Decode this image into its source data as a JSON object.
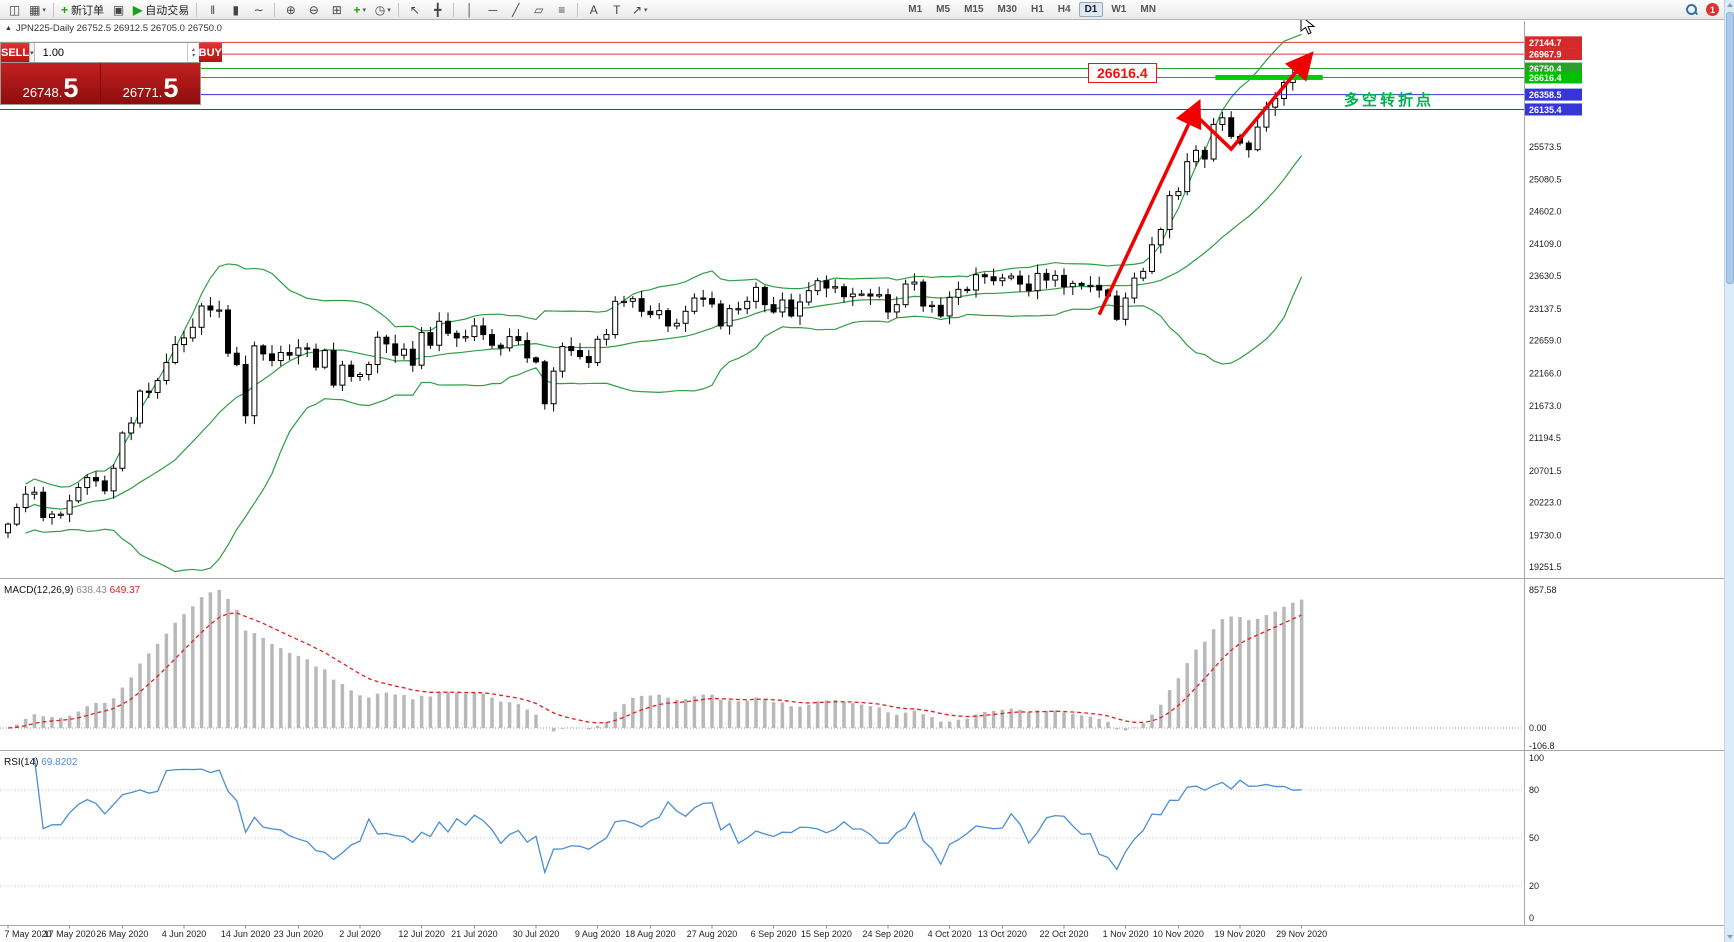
{
  "toolbar": {
    "dropdown_glyph": "▾",
    "items": [
      {
        "name": "new-chart-icon",
        "type": "icon",
        "glyph": "◫"
      },
      {
        "name": "chart-profiles-icon",
        "type": "icon",
        "glyph": "▦",
        "dropdown": true
      },
      {
        "type": "sep"
      },
      {
        "name": "new-order-button",
        "type": "button",
        "glyph": "+",
        "glyph_color": "#18a018",
        "label": "新订单"
      },
      {
        "name": "chart-windows-icon",
        "type": "icon",
        "glyph": "▣"
      },
      {
        "name": "auto-trading-button",
        "type": "button",
        "glyph": "▶",
        "glyph_color": "#18a018",
        "label": "自动交易"
      },
      {
        "type": "sep"
      },
      {
        "name": "bar-chart-icon",
        "type": "icon",
        "glyph": "‖"
      },
      {
        "name": "candlestick-chart-icon",
        "type": "icon",
        "glyph": "▮"
      },
      {
        "name": "line-chart-icon",
        "type": "icon",
        "glyph": "∼"
      },
      {
        "type": "sep"
      },
      {
        "name": "zoom-in-icon",
        "type": "icon",
        "glyph": "⊕"
      },
      {
        "name": "zoom-out-icon",
        "type": "icon",
        "glyph": "⊖"
      },
      {
        "name": "tile-windows-icon",
        "type": "icon",
        "glyph": "⊞"
      },
      {
        "name": "indicators-icon",
        "type": "icon",
        "glyph": "+",
        "glyph_color": "#18a018",
        "dropdown": true
      },
      {
        "name": "periods-icon",
        "type": "icon",
        "glyph": "◷",
        "dropdown": true
      },
      {
        "type": "sep"
      },
      {
        "name": "cursor-icon",
        "type": "icon",
        "glyph": "↖"
      },
      {
        "name": "crosshair-icon",
        "type": "icon",
        "glyph": "╋"
      },
      {
        "type": "sep"
      },
      {
        "name": "vertical-line-icon",
        "type": "icon",
        "glyph": "│"
      },
      {
        "name": "horizontal-line-icon",
        "type": "icon",
        "glyph": "─"
      },
      {
        "name": "trendline-icon",
        "type": "icon",
        "glyph": "╱"
      },
      {
        "name": "channel-icon",
        "type": "icon",
        "glyph": "▱"
      },
      {
        "name": "fibonacci-icon",
        "type": "icon",
        "glyph": "≡"
      },
      {
        "type": "sep"
      },
      {
        "name": "text-tool-icon",
        "type": "icon",
        "glyph": "A"
      },
      {
        "name": "label-tool-icon",
        "type": "icon",
        "glyph": "T"
      },
      {
        "name": "arrows-tool-icon",
        "type": "icon",
        "glyph": "↗",
        "dropdown": true
      }
    ],
    "timeframes": [
      "M1",
      "M5",
      "M15",
      "M30",
      "H1",
      "H4",
      "D1",
      "W1",
      "MN"
    ],
    "active_timeframe": "D1",
    "right": {
      "notification_count": "1"
    }
  },
  "chart_header": {
    "collapse_glyph": "▲",
    "info_line": "JPN225-Daily  26752.5 26912.5 26705.0 26750.0"
  },
  "trade_panel": {
    "sell_label": "SELL",
    "buy_label": "BUY",
    "volume": "1.00",
    "dropdown_glyph": "▾",
    "spinner_up": "▴",
    "spinner_down": "▾",
    "sell_price_prefix": "26748.",
    "sell_price_big": "5",
    "buy_price_prefix": "26771.",
    "buy_price_big": "5"
  },
  "annotations": {
    "price_box": "26616.4",
    "turning_point": "多空转折点"
  },
  "price_axis": {
    "labels": [
      "25573.5",
      "25080.5",
      "24602.0",
      "24109.0",
      "23630.5",
      "23137.5",
      "22659.0",
      "22166.0",
      "21673.0",
      "21194.5",
      "20701.5",
      "20223.0",
      "19730.0",
      "19251.5"
    ],
    "tags": [
      {
        "value": "27144.7",
        "color": "#d42a2a"
      },
      {
        "value": "26967.9",
        "color": "#d42a2a"
      },
      {
        "value": "26750.4",
        "color": "#2ca02c"
      },
      {
        "value": "26616.4",
        "color": "#00c000"
      },
      {
        "value": "26358.5",
        "color": "#3535d8"
      },
      {
        "value": "26135.4",
        "color": "#3535d8"
      }
    ]
  },
  "indicators": {
    "macd": {
      "name": "MACD(12,26,9)",
      "main_value": "638.43",
      "signal_value": "649.37",
      "axis_labels": [
        "857.58",
        "0.00",
        "-106.8"
      ]
    },
    "rsi": {
      "name": "RSI(14)",
      "value": "69.8202",
      "axis_labels": [
        "100",
        "80",
        "50",
        "20",
        "0"
      ],
      "levels": [
        80,
        50,
        20
      ]
    }
  },
  "date_axis": {
    "ticks": [
      {
        "i": 0,
        "label": "7 May 2020"
      },
      {
        "i": 7,
        "label": "17 May 2020"
      },
      {
        "i": 13,
        "label": "26 May 2020"
      },
      {
        "i": 20,
        "label": "4 Jun 2020"
      },
      {
        "i": 27,
        "label": "14 Jun 2020"
      },
      {
        "i": 33,
        "label": "23 Jun 2020"
      },
      {
        "i": 40,
        "label": "2 Jul 2020"
      },
      {
        "i": 47,
        "label": "12 Jul 2020"
      },
      {
        "i": 53,
        "label": "21 Jul 2020"
      },
      {
        "i": 60,
        "label": "30 Jul 2020"
      },
      {
        "i": 67,
        "label": "9 Aug 2020"
      },
      {
        "i": 73,
        "label": "18 Aug 2020"
      },
      {
        "i": 80,
        "label": "27 Aug 2020"
      },
      {
        "i": 87,
        "label": "6 Sep 2020"
      },
      {
        "i": 93,
        "label": "15 Sep 2020"
      },
      {
        "i": 100,
        "label": "24 Sep 2020"
      },
      {
        "i": 107,
        "label": "4 Oct 2020"
      },
      {
        "i": 113,
        "label": "13 Oct 2020"
      },
      {
        "i": 120,
        "label": "22 Oct 2020"
      },
      {
        "i": 127,
        "label": "1 Nov 2020"
      },
      {
        "i": 133,
        "label": "10 Nov 2020"
      },
      {
        "i": 140,
        "label": "19 Nov 2020"
      },
      {
        "i": 147,
        "label": "29 Nov 2020"
      }
    ]
  },
  "chart_data": {
    "type": "candlestick",
    "symbol": "JPN225",
    "timeframe": "Daily",
    "ohlc_current": {
      "open": 26752.5,
      "high": 26912.5,
      "low": 26705.0,
      "close": 26750.0
    },
    "y_axis_range": [
      19150,
      27300
    ],
    "bollinger_period": 20,
    "closes": [
      19900,
      20150,
      20350,
      20380,
      20000,
      20050,
      20050,
      20250,
      20450,
      20600,
      20550,
      20400,
      20740,
      21270,
      21420,
      21900,
      21880,
      22060,
      22330,
      22600,
      22700,
      22860,
      23180,
      23120,
      23120,
      22470,
      22300,
      21530,
      22580,
      22460,
      22360,
      22480,
      22440,
      22550,
      22530,
      22260,
      22510,
      21990,
      22290,
      22120,
      22150,
      22300,
      22710,
      22610,
      22440,
      22530,
      22290,
      22780,
      22590,
      22950,
      22770,
      22700,
      22720,
      22880,
      22750,
      22590,
      22550,
      22720,
      22660,
      22400,
      22340,
      21710,
      22200,
      22570,
      22510,
      22420,
      22330,
      22680,
      22750,
      23250,
      23250,
      23290,
      23100,
      23050,
      23110,
      22880,
      22920,
      23100,
      23300,
      23290,
      23210,
      22880,
      23140,
      23140,
      23250,
      23460,
      23200,
      23090,
      23270,
      23030,
      23240,
      23410,
      23560,
      23450,
      23470,
      23320,
      23360,
      23360,
      23330,
      23350,
      23090,
      23200,
      23510,
      23540,
      23180,
      23190,
      23030,
      23310,
      23430,
      23420,
      23650,
      23620,
      23560,
      23600,
      23630,
      23510,
      23410,
      23670,
      23570,
      23640,
      23470,
      23520,
      23490,
      23490,
      23420,
      23330,
      22980,
      23300,
      23600,
      23700,
      24100,
      24330,
      24840,
      24900,
      25350,
      25520,
      25390,
      25910,
      26010,
      25730,
      25630,
      25530,
      25870,
      26170,
      26300,
      26540,
      26650,
      26750
    ],
    "horizontal_lines": [
      {
        "price": 27144.7,
        "color": "#e03636"
      },
      {
        "price": 26967.9,
        "color": "#e03636"
      },
      {
        "price": 26750.4,
        "color": "#2ca02c"
      },
      {
        "price": 26616.4,
        "color": "#2ca02c"
      },
      {
        "price": 26358.5,
        "color": "#3535d8"
      },
      {
        "price": 26135.4,
        "color": "#3535d8"
      }
    ],
    "support_segment": {
      "price": 26616.4,
      "i1": 137.2,
      "i2": 149.4,
      "color": "#00cc00",
      "thickness": 5
    },
    "trend_arrows": [
      {
        "points": [
          [
            124,
            23050
          ],
          [
            135,
            26150
          ]
        ]
      },
      {
        "points": [
          [
            135.2,
            26020
          ],
          [
            139,
            25540
          ],
          [
            147.6,
            26890
          ]
        ]
      }
    ],
    "macd_panel": {
      "max": 857.58,
      "min": -106.8
    },
    "rsi_current": 69.8202,
    "colors": {
      "up": "#ffffff",
      "down": "#000000",
      "border": "#000000",
      "bollinger": "#2f9e44",
      "macd_hist": "#b8b8b8",
      "macd_signal": "#e02020",
      "rsi": "#4a8fd4",
      "trend": "#f00000"
    }
  }
}
